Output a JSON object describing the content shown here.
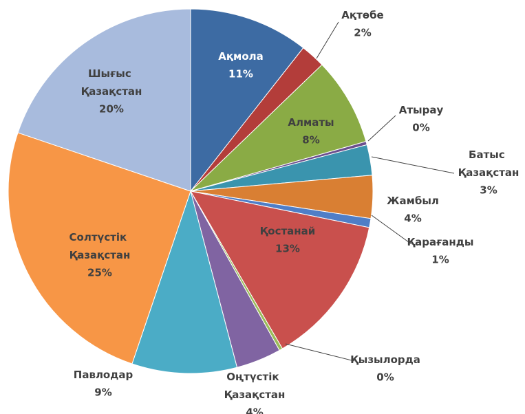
{
  "chart_data": {
    "type": "pie",
    "categories": [
      "Ақмола",
      "Ақтөбе",
      "Алматы",
      "Атырау",
      "Батыс Қазақстан",
      "Жамбыл",
      "Қарағанды",
      "Қостанай",
      "Қызылорда",
      "Оңтүстік Қазақстан",
      "Павлодар",
      "Солтүстік Қазақстан",
      "Шығыс Қазақстан"
    ],
    "values": [
      10.6,
      2.2,
      7.8,
      0.3,
      2.7,
      3.8,
      0.8,
      13.4,
      0.3,
      4,
      9.3,
      25,
      19.8
    ],
    "value_labels": [
      "11%",
      "2%",
      "8%",
      "0%",
      "3%",
      "4%",
      "1%",
      "13%",
      "0%",
      "4%",
      "9%",
      "25%",
      "20%"
    ],
    "colors": [
      "#3d6ba3",
      "#b33d3a",
      "#8aab45",
      "#6b4f8e",
      "#3a94ae",
      "#d97f33",
      "#4f7ec7",
      "#c9504d",
      "#9bbb59",
      "#8064a2",
      "#4bacc6",
      "#f79646",
      "#a8bbdd"
    ]
  }
}
